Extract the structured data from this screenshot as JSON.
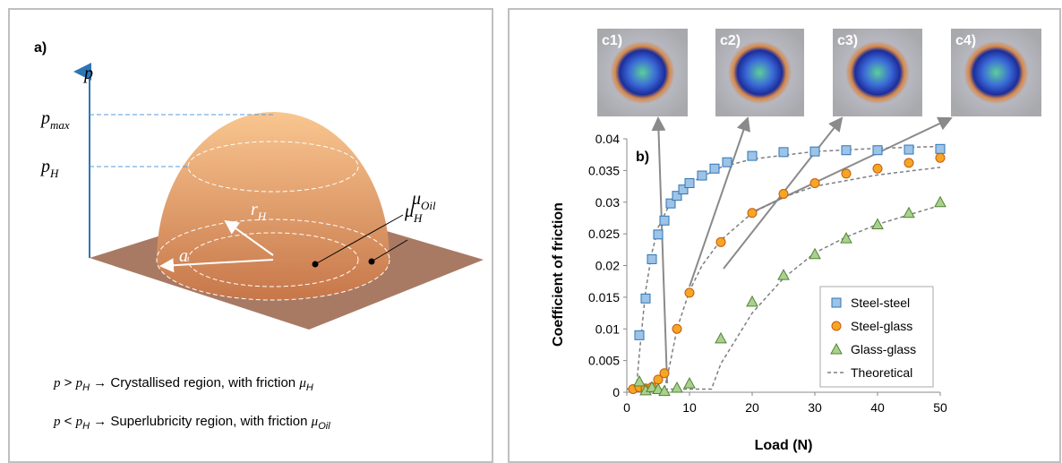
{
  "panel_a": {
    "label": "a)",
    "axis": "p",
    "p_max": [
      "p",
      "max"
    ],
    "p_H": [
      "p",
      "H"
    ],
    "mu_H": [
      "μ",
      "H"
    ],
    "mu_oil": [
      "μ",
      "Oil"
    ],
    "a": "a",
    "r_H": [
      "r",
      "H"
    ],
    "line1": [
      "p",
      " > ",
      "p",
      "H",
      " → Crystallised region, with friction ",
      "μ",
      "H"
    ],
    "line2": [
      "p",
      " < ",
      "p",
      "H",
      " → Superlubricity region, with friction ",
      "μ",
      "Oil"
    ]
  },
  "images": [
    "c1)",
    "c2)",
    "c3)",
    "c4)"
  ],
  "chart_data": {
    "type": "scatter",
    "label": "b)",
    "xlabel": "Load (N)",
    "ylabel": "Coefficient of friction",
    "xlim": [
      0,
      50
    ],
    "xticks": [
      0,
      10,
      20,
      30,
      40,
      50
    ],
    "ylim": [
      0,
      0.04
    ],
    "yticks": [
      0,
      0.005,
      0.01,
      0.015,
      0.02,
      0.025,
      0.03,
      0.035,
      0.04
    ],
    "grid": false,
    "legend": "lower right",
    "series": [
      {
        "name": "Steel-steel",
        "color": "#9dc3e6",
        "edge": "#2e75b6",
        "marker": "square",
        "x": [
          2,
          3,
          4,
          5,
          6,
          7,
          8,
          9,
          10,
          12,
          14,
          16,
          20,
          25,
          30,
          35,
          40,
          45,
          50
        ],
        "values": [
          0.009,
          0.0148,
          0.021,
          0.0249,
          0.0271,
          0.0298,
          0.031,
          0.032,
          0.033,
          0.0342,
          0.0353,
          0.0363,
          0.0373,
          0.0379,
          0.038,
          0.0382,
          0.0382,
          0.0383,
          0.0384
        ]
      },
      {
        "name": "Steel-glass",
        "color": "#f5a623",
        "edge": "#c55a11",
        "marker": "circle",
        "x": [
          1,
          2,
          3,
          4,
          5,
          6,
          8,
          10,
          15,
          20,
          25,
          30,
          35,
          40,
          45,
          50
        ],
        "values": [
          0.0005,
          0.0008,
          0.0006,
          0.0008,
          0.002,
          0.003,
          0.01,
          0.0157,
          0.0237,
          0.0283,
          0.0313,
          0.033,
          0.0345,
          0.0353,
          0.0362,
          0.037
        ]
      },
      {
        "name": "Glass-glass",
        "color": "#a9d18e",
        "edge": "#548235",
        "marker": "triangle",
        "x": [
          2,
          3,
          4,
          5,
          6,
          8,
          10,
          15,
          20,
          25,
          30,
          35,
          40,
          45,
          50
        ],
        "values": [
          0.0017,
          0.0003,
          0.0008,
          0.0005,
          0.0002,
          0.0007,
          0.0014,
          0.0085,
          0.0143,
          0.0185,
          0.0218,
          0.0243,
          0.0265,
          0.0283,
          0.03
        ]
      }
    ],
    "theoretical": {
      "name": "Theoretical",
      "color": "#7f7f7f",
      "curves": [
        {
          "x": [
            1.5,
            2,
            3,
            4,
            5,
            7,
            10,
            15,
            20,
            30,
            40,
            50
          ],
          "values": [
            0.0005,
            0.006,
            0.016,
            0.022,
            0.026,
            0.03,
            0.033,
            0.0355,
            0.0368,
            0.038,
            0.0385,
            0.0388
          ]
        },
        {
          "x": [
            0,
            6,
            7,
            8,
            10,
            12,
            15,
            20,
            25,
            30,
            40,
            50
          ],
          "values": [
            0.0005,
            0.0005,
            0.005,
            0.01,
            0.016,
            0.02,
            0.024,
            0.0283,
            0.0308,
            0.0325,
            0.0343,
            0.0355
          ]
        },
        {
          "x": [
            0,
            13.5,
            15,
            20,
            25,
            30,
            35,
            40,
            45,
            50
          ],
          "values": [
            0.0005,
            0.0005,
            0.0045,
            0.0125,
            0.018,
            0.022,
            0.0245,
            0.0265,
            0.028,
            0.0295
          ]
        }
      ]
    }
  }
}
